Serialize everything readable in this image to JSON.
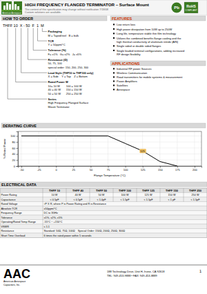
{
  "chart_data": {
    "type": "line",
    "title": "DERATING CURVE",
    "xlabel": "Flange Temperature (°C)",
    "ylabel": "% Rated Power",
    "x": [
      -50,
      0,
      25,
      75,
      100,
      125,
      150,
      175
    ],
    "values": [
      100,
      100,
      100,
      100,
      75,
      50,
      15,
      0
    ],
    "color": "#000000",
    "xlim": [
      -55,
      210
    ],
    "ylim": [
      0,
      115
    ],
    "xticks": [
      -50,
      -25,
      0,
      25,
      50,
      75,
      100,
      125,
      150,
      175,
      200
    ],
    "yticks": [
      0,
      20,
      40,
      60,
      80,
      100
    ],
    "grid": true,
    "annotations": [
      {
        "text": "125",
        "x": 125,
        "y": 50
      }
    ]
  },
  "page": {
    "logo_text": "American Aerospace",
    "title": "HIGH FREQUENCY FLANGED TERMINATOR – Surface Mount",
    "subtitle": "The content of this specification may change without notification 7/18/08",
    "custom_note": "Custom solutions are available.",
    "pb_badge": "Pb",
    "rohs_badge": [
      "RoHS",
      "COMPLIANT"
    ],
    "how_to_order": {
      "title": "HOW TO ORDER",
      "part_number": "THFF 10  X - 50  F  1  M",
      "groups": [
        {
          "heading": "Packaging",
          "lines": [
            "M = Taped/reel   B = bulk"
          ]
        },
        {
          "heading": "TCR",
          "lines": [
            "Y = 50ppm/°C"
          ]
        },
        {
          "heading": "Tolerance (%)",
          "lines": [
            "F= ±1%   G= ±2%   J= ±5%"
          ]
        },
        {
          "heading": "Resistance (Ω)",
          "lines": [
            "50, 75, 100",
            "special order: 150, 200, 250, 300"
          ]
        },
        {
          "heading": "Lead Style (THF10 to THF100 only)",
          "lines": [
            "X = Side    Y = Top    Z = Bottom"
          ]
        },
        {
          "heading": "Rated Power W",
          "lines": [
            "10= 10 W        100 = 100 W",
            "40 = 40 W       150 = 150 W",
            "50 = 50 W       250 = 250 W"
          ]
        },
        {
          "heading": "Series",
          "lines": [
            "High Frequency Flanged Surface",
            "Mount Terminator"
          ]
        }
      ]
    },
    "features": {
      "title": "FEATURES",
      "items": [
        "Low return loss",
        "High power dissipation from 10W up to 250W",
        "Long life, temperature stable thin film technology",
        "Utilizes the combined benefits flange cooling and the\nhigh thermal conductivity of aluminum nitride (AlN)",
        "Single sided or double sided flanges",
        "Single leaded terminal configurations, adding increased\nRF design flexibility"
      ]
    },
    "applications": {
      "title": "APPLICATIONS",
      "items": [
        "Industrial RF power Sources",
        "Wireless Communication",
        "Road transmitters for mobile systems & measurement",
        "Power Amplifiers",
        "Satellites",
        "Aerospace"
      ]
    },
    "electrical": {
      "title": "ELECTRICAL DATA",
      "headers": [
        "THFF 10",
        "THFF 40",
        "THFF 50",
        "THFF 100",
        "THFF 125",
        "THFF 150",
        "THFF 250"
      ],
      "rows": [
        {
          "label": "Power Rating",
          "values": [
            "10 W",
            "40 W",
            "50 W",
            "100 W",
            "125 W",
            "150 W",
            "250 W"
          ]
        },
        {
          "label": "Capacitance",
          "values": [
            "< 0.5pF",
            "< 0.5pF",
            "< 1.0pF",
            "< 1.5pF",
            "< 1.5pF",
            "< 1 pF",
            "< 1.5pF"
          ]
        },
        {
          "label": "Rated Voltage",
          "value": "√P X R, where P is Power Rating and R is Resistance"
        },
        {
          "label": "Absolute TCR",
          "value": "±50ppm/°C"
        },
        {
          "label": "Frequency Range",
          "value": "DC to 3GHz"
        },
        {
          "label": "Tolerance",
          "value": "±1%, ±2%, ±5%"
        },
        {
          "label": "Operating/Rated Temp Range",
          "value": "-55°C ~ +150°C"
        },
        {
          "label": "VSWR",
          "value": "≤ 1.1"
        },
        {
          "label": "Resistance",
          "value": "Standard: 50Ω, 75Ω, 100Ω    Special Order: 150Ω, 200Ω, 250Ω, 300Ω"
        },
        {
          "label": "Short Time Overload",
          "value": "6 times the rated power within 5 seconds"
        }
      ]
    },
    "footer": {
      "logo": "AAC",
      "company": "American Aerospace\nCapacitors, Inc.",
      "address": "188 Technology Drive, Unit H, Irvine, CA 92618",
      "tel": "TEL: 949-453-9888 • FAX: 949-453-8889",
      "page": "1"
    }
  }
}
